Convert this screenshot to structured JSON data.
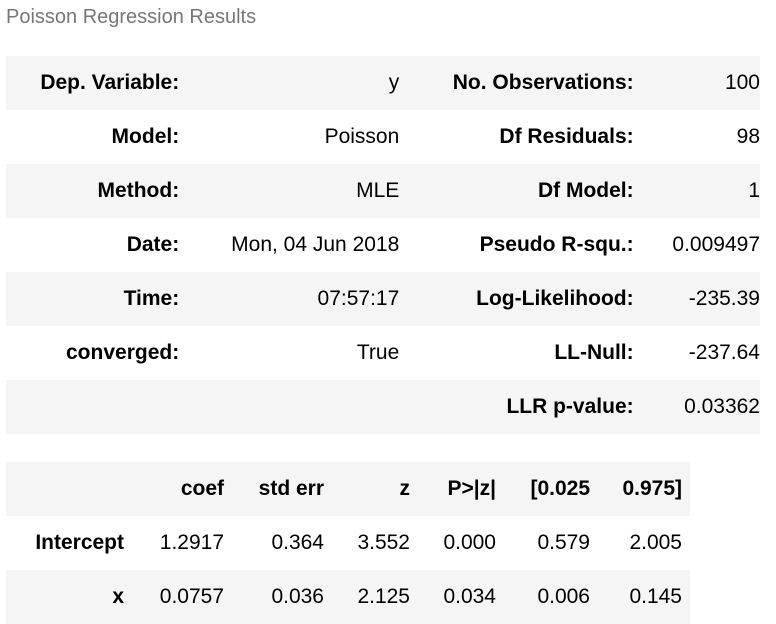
{
  "caption": "Poisson Regression Results",
  "summary": [
    {
      "l1": "Dep. Variable:",
      "v1": "y",
      "l2": "No. Observations:",
      "v2": "100"
    },
    {
      "l1": "Model:",
      "v1": "Poisson",
      "l2": "Df Residuals:",
      "v2": "98"
    },
    {
      "l1": "Method:",
      "v1": "MLE",
      "l2": "Df Model:",
      "v2": "1"
    },
    {
      "l1": "Date:",
      "v1": "Mon, 04 Jun 2018",
      "l2": "Pseudo R-squ.:",
      "v2": "0.009497"
    },
    {
      "l1": "Time:",
      "v1": "07:57:17",
      "l2": "Log-Likelihood:",
      "v2": "-235.39"
    },
    {
      "l1": "converged:",
      "v1": "True",
      "l2": "LL-Null:",
      "v2": "-237.64"
    },
    {
      "l1": "",
      "v1": "",
      "l2": "LLR p-value:",
      "v2": "0.03362"
    }
  ],
  "coef": {
    "headers": [
      "",
      "coef",
      "std err",
      "z",
      "P>|z|",
      "[0.025",
      "0.975]"
    ],
    "rows": [
      [
        "Intercept",
        "1.2917",
        "0.364",
        "3.552",
        "0.000",
        "0.579",
        "2.005"
      ],
      [
        "x",
        "0.0757",
        "0.036",
        "2.125",
        "0.034",
        "0.006",
        "0.145"
      ]
    ]
  }
}
